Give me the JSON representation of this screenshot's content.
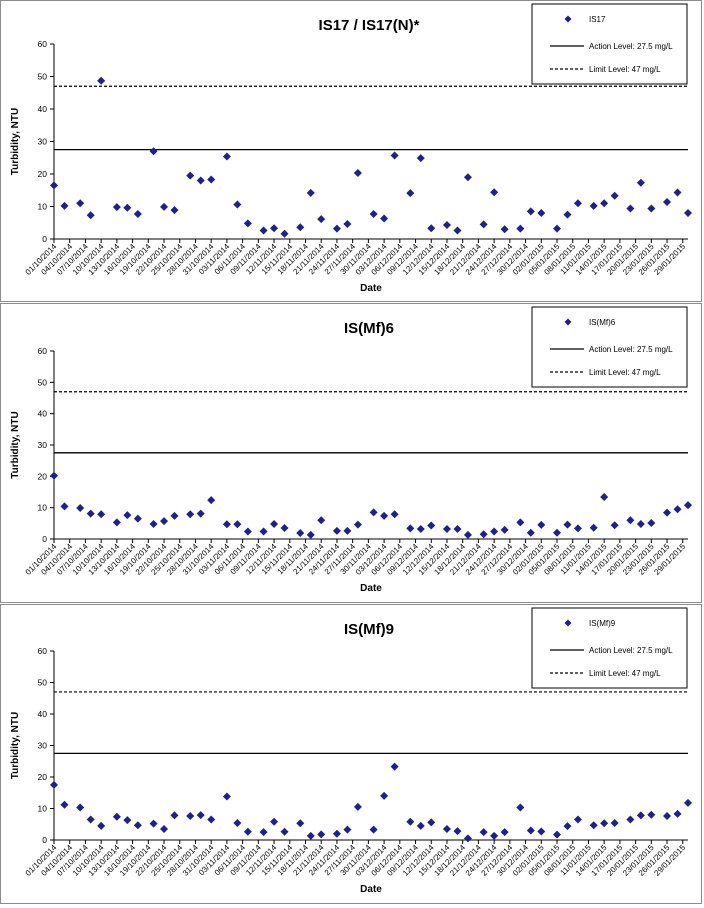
{
  "legend_labels": {
    "action": "Action Level: 27.5 mg/L",
    "limit": "Limit Level: 47 mg/L"
  },
  "colors": {
    "marker": "#1f1f8f",
    "line": "#000000",
    "border": "#8c8c8c"
  },
  "chart_data": [
    {
      "type": "scatter",
      "title": "IS17 / IS17(N)*",
      "xlabel": "Date",
      "ylabel": "Turbidity, NTU",
      "ylim": [
        0,
        60
      ],
      "yticks": [
        "0",
        "10",
        "20",
        "30",
        "40",
        "50",
        "60"
      ],
      "xtick_labels": [
        "01/10/2014",
        "04/10/2014",
        "07/10/2014",
        "10/10/2014",
        "13/10/2014",
        "16/10/2014",
        "19/10/2014",
        "22/10/2014",
        "25/10/2014",
        "28/10/2014",
        "31/10/2014",
        "03/11/2014",
        "06/11/2014",
        "09/11/2014",
        "12/11/2014",
        "15/11/2014",
        "18/11/2014",
        "21/11/2014",
        "24/11/2014",
        "27/11/2014",
        "30/11/2014",
        "03/12/2014",
        "06/12/2014",
        "09/12/2014",
        "12/12/2014",
        "15/12/2014",
        "18/12/2014",
        "21/12/2014",
        "24/12/2014",
        "27/12/2014",
        "30/12/2014",
        "02/01/2015",
        "05/01/2015",
        "08/01/2015",
        "11/01/2015",
        "14/01/2015",
        "17/01/2015",
        "20/01/2015",
        "23/01/2015",
        "26/01/2015",
        "29/01/2015"
      ],
      "x_range": [
        "01/10/2014",
        "30/01/2015"
      ],
      "legend_position": "top-right",
      "action_level": 27.5,
      "limit_level": 47,
      "series": [
        {
          "name": "IS17",
          "points": [
            [
              "01/10/2014",
              16.5
            ],
            [
              "03/10/2014",
              10.2
            ],
            [
              "06/10/2014",
              11.0
            ],
            [
              "08/10/2014",
              7.3
            ],
            [
              "10/10/2014",
              48.7
            ],
            [
              "13/10/2014",
              9.8
            ],
            [
              "15/10/2014",
              9.6
            ],
            [
              "17/10/2014",
              7.7
            ],
            [
              "20/10/2014",
              27.0
            ],
            [
              "22/10/2014",
              9.9
            ],
            [
              "24/10/2014",
              8.9
            ],
            [
              "27/10/2014",
              19.5
            ],
            [
              "29/10/2014",
              18.0
            ],
            [
              "31/10/2014",
              18.3
            ],
            [
              "03/11/2014",
              25.4
            ],
            [
              "05/11/2014",
              10.6
            ],
            [
              "07/11/2014",
              4.8
            ],
            [
              "10/11/2014",
              2.6
            ],
            [
              "12/11/2014",
              3.3
            ],
            [
              "14/11/2014",
              1.6
            ],
            [
              "17/11/2014",
              3.6
            ],
            [
              "19/11/2014",
              14.2
            ],
            [
              "21/11/2014",
              6.1
            ],
            [
              "24/11/2014",
              3.2
            ],
            [
              "26/11/2014",
              4.6
            ],
            [
              "28/11/2014",
              20.3
            ],
            [
              "01/12/2014",
              7.7
            ],
            [
              "03/12/2014",
              6.3
            ],
            [
              "05/12/2014",
              25.7
            ],
            [
              "08/12/2014",
              14.1
            ],
            [
              "10/12/2014",
              24.9
            ],
            [
              "12/12/2014",
              3.3
            ],
            [
              "15/12/2014",
              4.3
            ],
            [
              "17/12/2014",
              2.6
            ],
            [
              "19/12/2014",
              19.0
            ],
            [
              "22/12/2014",
              4.5
            ],
            [
              "24/12/2014",
              14.4
            ],
            [
              "26/12/2014",
              3.0
            ],
            [
              "29/12/2014",
              3.2
            ],
            [
              "31/12/2014",
              8.5
            ],
            [
              "02/01/2015",
              8.0
            ],
            [
              "05/01/2015",
              3.2
            ],
            [
              "07/01/2015",
              7.5
            ],
            [
              "09/01/2015",
              11.0
            ],
            [
              "12/01/2015",
              10.2
            ],
            [
              "14/01/2015",
              11.0
            ],
            [
              "16/01/2015",
              13.3
            ],
            [
              "19/01/2015",
              9.4
            ],
            [
              "21/01/2015",
              17.3
            ],
            [
              "23/01/2015",
              9.4
            ],
            [
              "26/01/2015",
              11.4
            ],
            [
              "28/01/2015",
              14.3
            ],
            [
              "30/01/2015",
              8.0
            ]
          ]
        }
      ]
    },
    {
      "type": "scatter",
      "title": "IS(Mf)6",
      "xlabel": "Date",
      "ylabel": "Turbidity, NTU",
      "ylim": [
        0,
        60
      ],
      "yticks": [
        "0",
        "10",
        "20",
        "30",
        "40",
        "50",
        "60"
      ],
      "xtick_labels": [
        "01/10/2014",
        "04/10/2014",
        "07/10/2014",
        "10/10/2014",
        "13/10/2014",
        "16/10/2014",
        "19/10/2014",
        "22/10/2014",
        "25/10/2014",
        "28/10/2014",
        "31/10/2014",
        "03/11/2014",
        "06/11/2014",
        "09/11/2014",
        "12/11/2014",
        "15/11/2014",
        "18/11/2014",
        "21/11/2014",
        "24/11/2014",
        "27/11/2014",
        "30/11/2014",
        "03/12/2014",
        "06/12/2014",
        "09/12/2014",
        "12/12/2014",
        "15/12/2014",
        "18/12/2014",
        "21/12/2014",
        "24/12/2014",
        "27/12/2014",
        "30/12/2014",
        "02/01/2015",
        "05/01/2015",
        "08/01/2015",
        "11/01/2015",
        "14/01/2015",
        "17/01/2015",
        "20/01/2015",
        "23/01/2015",
        "26/01/2015",
        "29/01/2015"
      ],
      "x_range": [
        "01/10/2014",
        "30/01/2015"
      ],
      "legend_position": "top-right",
      "action_level": 27.5,
      "limit_level": 47,
      "series": [
        {
          "name": "IS(Mf)6",
          "points": [
            [
              "01/10/2014",
              20.2
            ],
            [
              "03/10/2014",
              10.4
            ],
            [
              "06/10/2014",
              9.9
            ],
            [
              "08/10/2014",
              8.1
            ],
            [
              "10/10/2014",
              7.9
            ],
            [
              "13/10/2014",
              5.3
            ],
            [
              "15/10/2014",
              7.6
            ],
            [
              "17/10/2014",
              6.5
            ],
            [
              "20/10/2014",
              4.8
            ],
            [
              "22/10/2014",
              5.7
            ],
            [
              "24/10/2014",
              7.4
            ],
            [
              "27/10/2014",
              7.9
            ],
            [
              "29/10/2014",
              8.1
            ],
            [
              "31/10/2014",
              12.4
            ],
            [
              "03/11/2014",
              4.7
            ],
            [
              "05/11/2014",
              4.7
            ],
            [
              "07/11/2014",
              2.4
            ],
            [
              "10/11/2014",
              2.4
            ],
            [
              "12/11/2014",
              4.8
            ],
            [
              "14/11/2014",
              3.5
            ],
            [
              "17/11/2014",
              1.9
            ],
            [
              "19/11/2014",
              1.3
            ],
            [
              "21/11/2014",
              6.0
            ],
            [
              "24/11/2014",
              2.6
            ],
            [
              "26/11/2014",
              2.6
            ],
            [
              "28/11/2014",
              4.6
            ],
            [
              "01/12/2014",
              8.5
            ],
            [
              "03/12/2014",
              7.4
            ],
            [
              "05/12/2014",
              7.9
            ],
            [
              "08/12/2014",
              3.4
            ],
            [
              "10/12/2014",
              3.2
            ],
            [
              "12/12/2014",
              4.3
            ],
            [
              "15/12/2014",
              3.2
            ],
            [
              "17/12/2014",
              3.2
            ],
            [
              "19/12/2014",
              1.3
            ],
            [
              "22/12/2014",
              1.5
            ],
            [
              "24/12/2014",
              2.4
            ],
            [
              "26/12/2014",
              2.9
            ],
            [
              "29/12/2014",
              5.3
            ],
            [
              "31/12/2014",
              2.0
            ],
            [
              "02/01/2015",
              4.5
            ],
            [
              "05/01/2015",
              2.0
            ],
            [
              "07/01/2015",
              4.6
            ],
            [
              "09/01/2015",
              3.4
            ],
            [
              "12/01/2015",
              3.6
            ],
            [
              "14/01/2015",
              13.4
            ],
            [
              "16/01/2015",
              4.4
            ],
            [
              "19/01/2015",
              6.0
            ],
            [
              "21/01/2015",
              4.8
            ],
            [
              "23/01/2015",
              5.1
            ],
            [
              "26/01/2015",
              8.4
            ],
            [
              "28/01/2015",
              9.5
            ],
            [
              "30/01/2015",
              10.8
            ]
          ]
        }
      ]
    },
    {
      "type": "scatter",
      "title": "IS(Mf)9",
      "xlabel": "Date",
      "ylabel": "Turbidity, NTU",
      "ylim": [
        0,
        60
      ],
      "yticks": [
        "0",
        "10",
        "20",
        "30",
        "40",
        "50",
        "60"
      ],
      "xtick_labels": [
        "01/10/2014",
        "04/10/2014",
        "07/10/2014",
        "10/10/2014",
        "13/10/2014",
        "16/10/2014",
        "19/10/2014",
        "22/10/2014",
        "25/10/2014",
        "28/10/2014",
        "31/10/2014",
        "03/11/2014",
        "06/11/2014",
        "09/11/2014",
        "12/11/2014",
        "15/11/2014",
        "18/11/2014",
        "21/11/2014",
        "24/11/2014",
        "27/11/2014",
        "30/11/2014",
        "03/12/2014",
        "06/12/2014",
        "09/12/2014",
        "12/12/2014",
        "15/12/2014",
        "18/12/2014",
        "21/12/2014",
        "24/12/2014",
        "27/12/2014",
        "30/12/2014",
        "02/01/2015",
        "05/01/2015",
        "08/01/2015",
        "11/01/2015",
        "14/01/2015",
        "17/01/2015",
        "20/01/2015",
        "23/01/2015",
        "26/01/2015",
        "29/01/2015"
      ],
      "x_range": [
        "01/10/2014",
        "30/01/2015"
      ],
      "legend_position": "top-right",
      "action_level": 27.5,
      "limit_level": 47,
      "series": [
        {
          "name": "IS(Mf)9",
          "points": [
            [
              "01/10/2014",
              17.5
            ],
            [
              "03/10/2014",
              11.2
            ],
            [
              "06/10/2014",
              10.3
            ],
            [
              "08/10/2014",
              6.5
            ],
            [
              "10/10/2014",
              4.5
            ],
            [
              "13/10/2014",
              7.4
            ],
            [
              "15/10/2014",
              6.3
            ],
            [
              "17/10/2014",
              4.7
            ],
            [
              "20/10/2014",
              5.2
            ],
            [
              "22/10/2014",
              3.5
            ],
            [
              "24/10/2014",
              7.8
            ],
            [
              "27/10/2014",
              7.6
            ],
            [
              "29/10/2014",
              7.9
            ],
            [
              "31/10/2014",
              6.5
            ],
            [
              "03/11/2014",
              13.8
            ],
            [
              "05/11/2014",
              5.4
            ],
            [
              "07/11/2014",
              2.6
            ],
            [
              "10/11/2014",
              2.5
            ],
            [
              "12/11/2014",
              5.8
            ],
            [
              "14/11/2014",
              2.6
            ],
            [
              "17/11/2014",
              5.3
            ],
            [
              "19/11/2014",
              1.3
            ],
            [
              "21/11/2014",
              1.8
            ],
            [
              "24/11/2014",
              2.0
            ],
            [
              "26/11/2014",
              3.3
            ],
            [
              "28/11/2014",
              10.5
            ],
            [
              "01/12/2014",
              3.3
            ],
            [
              "03/12/2014",
              14.0
            ],
            [
              "05/12/2014",
              23.3
            ],
            [
              "08/12/2014",
              5.8
            ],
            [
              "10/12/2014",
              4.5
            ],
            [
              "12/12/2014",
              5.6
            ],
            [
              "15/12/2014",
              3.5
            ],
            [
              "17/12/2014",
              2.8
            ],
            [
              "19/12/2014",
              0.5
            ],
            [
              "22/12/2014",
              2.5
            ],
            [
              "24/12/2014",
              1.3
            ],
            [
              "26/12/2014",
              2.5
            ],
            [
              "29/12/2014",
              10.3
            ],
            [
              "31/12/2014",
              3.0
            ],
            [
              "02/01/2015",
              2.7
            ],
            [
              "05/01/2015",
              1.7
            ],
            [
              "07/01/2015",
              4.4
            ],
            [
              "09/01/2015",
              6.5
            ],
            [
              "12/01/2015",
              4.7
            ],
            [
              "14/01/2015",
              5.3
            ],
            [
              "16/01/2015",
              5.4
            ],
            [
              "19/01/2015",
              6.5
            ],
            [
              "21/01/2015",
              7.8
            ],
            [
              "23/01/2015",
              8.0
            ],
            [
              "26/01/2015",
              7.6
            ],
            [
              "28/01/2015",
              8.3
            ],
            [
              "30/01/2015",
              11.8
            ]
          ]
        }
      ]
    }
  ]
}
